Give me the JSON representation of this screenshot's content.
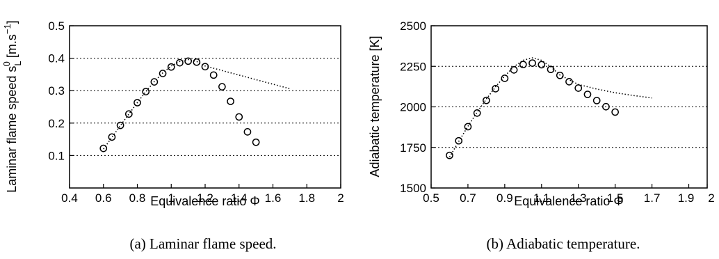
{
  "chart_data": [
    {
      "type": "scatter",
      "xlabel": "Equivalence ratio Φ",
      "ylabel": "Laminar flame speed s_L^0 [m.s^-1]",
      "ylabel_parts": {
        "main": "Laminar flame speed s",
        "sub": "L",
        "sup": "0",
        "unit_open": " [m.s",
        "unit_sup": "−1",
        "unit_close": "]"
      },
      "caption": "(a) Laminar flame speed.",
      "xlim": [
        0.4,
        2.0
      ],
      "ylim": [
        0.0,
        0.5
      ],
      "xticks": [
        "0.4",
        "0.6",
        "0.8",
        "1",
        "1.2",
        "1.4",
        "1.6",
        "1.8",
        "2"
      ],
      "yticks": [
        "0.1",
        "0.2",
        "0.3",
        "0.4",
        "0.5"
      ],
      "grid": "horizontal dotted",
      "series": [
        {
          "marker": "circle",
          "x": [
            0.6,
            0.65,
            0.7,
            0.75,
            0.8,
            0.85,
            0.9,
            0.95,
            1.0,
            1.05,
            1.1,
            1.15,
            1.2,
            1.25,
            1.3,
            1.35,
            1.4,
            1.45,
            1.5
          ],
          "y": [
            0.122,
            0.157,
            0.193,
            0.228,
            0.263,
            0.297,
            0.327,
            0.353,
            0.373,
            0.386,
            0.391,
            0.388,
            0.374,
            0.348,
            0.312,
            0.267,
            0.219,
            0.173,
            0.141
          ]
        },
        {
          "line": "dotted",
          "x": [
            0.6,
            0.65,
            0.7,
            0.75,
            0.8,
            0.85,
            0.9,
            0.95,
            1.0,
            1.05,
            1.1,
            1.15,
            1.2,
            1.3,
            1.4,
            1.5,
            1.6,
            1.7
          ],
          "y": [
            0.12,
            0.156,
            0.192,
            0.228,
            0.263,
            0.297,
            0.328,
            0.355,
            0.376,
            0.39,
            0.396,
            0.39,
            0.376,
            0.362,
            0.348,
            0.334,
            0.32,
            0.306
          ]
        }
      ]
    },
    {
      "type": "scatter",
      "xlabel": "Equivalence ratio Φ",
      "ylabel": "Adiabatic temperature [K]",
      "caption": "(b) Adiabatic temperature.",
      "xlim": [
        0.5,
        2.0
      ],
      "ylim": [
        1500,
        2500
      ],
      "xticks": [
        "0.5",
        "0.7",
        "0.9",
        "1.1",
        "1.3",
        "1.5",
        "1.7",
        "1.9",
        "2"
      ],
      "xtick_values": [
        0.5,
        0.7,
        0.9,
        1.1,
        1.3,
        1.5,
        1.7,
        1.9,
        2.0
      ],
      "yticks": [
        "1500",
        "1750",
        "2000",
        "2250",
        "2500"
      ],
      "grid": "horizontal dotted",
      "series": [
        {
          "marker": "circle",
          "x": [
            0.6,
            0.65,
            0.7,
            0.75,
            0.8,
            0.85,
            0.9,
            0.95,
            1.0,
            1.05,
            1.1,
            1.15,
            1.2,
            1.25,
            1.3,
            1.35,
            1.4,
            1.45,
            1.5
          ],
          "y": [
            1701,
            1791,
            1878,
            1962,
            2040,
            2112,
            2176,
            2228,
            2261,
            2270,
            2260,
            2231,
            2194,
            2155,
            2116,
            2077,
            2039,
            2001,
            1968
          ]
        },
        {
          "line": "dotted",
          "x": [
            0.6,
            0.65,
            0.7,
            0.75,
            0.8,
            0.85,
            0.9,
            0.95,
            1.0,
            1.05,
            1.1,
            1.15,
            1.2,
            1.3,
            1.4,
            1.5,
            1.6,
            1.7
          ],
          "y": [
            1690,
            1787,
            1880,
            1967,
            2048,
            2123,
            2190,
            2248,
            2287,
            2302,
            2287,
            2247,
            2196,
            2138,
            2110,
            2087,
            2070,
            2055
          ]
        }
      ]
    }
  ]
}
